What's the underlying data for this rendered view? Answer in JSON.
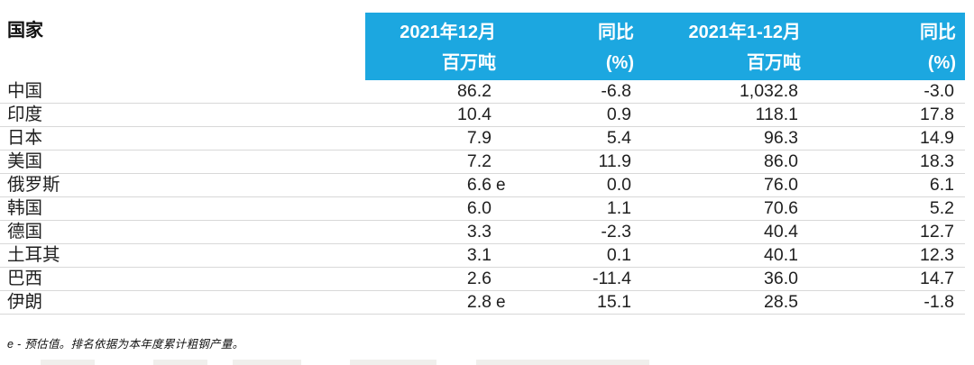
{
  "table": {
    "country_header": "国家",
    "columns": [
      {
        "line1": "2021年12月",
        "line2": "百万吨"
      },
      {
        "line1": "同比",
        "line2": "(%)"
      },
      {
        "line1": "2021年1-12月",
        "line2": "百万吨"
      },
      {
        "line1": "同比",
        "line2": "(%)"
      }
    ],
    "rows": [
      {
        "country": "中国",
        "dec": "86.2",
        "dec_e": "",
        "dec_yoy": "-6.8",
        "ytd": "1,032.8",
        "ytd_yoy": "-3.0"
      },
      {
        "country": "印度",
        "dec": "10.4",
        "dec_e": "",
        "dec_yoy": "0.9",
        "ytd": "118.1",
        "ytd_yoy": "17.8"
      },
      {
        "country": "日本",
        "dec": "7.9",
        "dec_e": "",
        "dec_yoy": "5.4",
        "ytd": "96.3",
        "ytd_yoy": "14.9"
      },
      {
        "country": "美国",
        "dec": "7.2",
        "dec_e": "",
        "dec_yoy": "11.9",
        "ytd": "86.0",
        "ytd_yoy": "18.3"
      },
      {
        "country": "俄罗斯",
        "dec": "6.6",
        "dec_e": "e",
        "dec_yoy": "0.0",
        "ytd": "76.0",
        "ytd_yoy": "6.1"
      },
      {
        "country": "韩国",
        "dec": "6.0",
        "dec_e": "",
        "dec_yoy": "1.1",
        "ytd": "70.6",
        "ytd_yoy": "5.2"
      },
      {
        "country": "德国",
        "dec": "3.3",
        "dec_e": "",
        "dec_yoy": "-2.3",
        "ytd": "40.4",
        "ytd_yoy": "12.7"
      },
      {
        "country": "土耳其",
        "dec": "3.1",
        "dec_e": "",
        "dec_yoy": "0.1",
        "ytd": "40.1",
        "ytd_yoy": "12.3"
      },
      {
        "country": "巴西",
        "dec": "2.6",
        "dec_e": "",
        "dec_yoy": "-11.4",
        "ytd": "36.0",
        "ytd_yoy": "14.7"
      },
      {
        "country": "伊朗",
        "dec": "2.8",
        "dec_e": "e",
        "dec_yoy": "15.1",
        "ytd": "28.5",
        "ytd_yoy": "-1.8"
      }
    ]
  },
  "footnote": "e - 预估值。排名依据为本年度累计粗钢产量。",
  "colors": {
    "header_bg": "#1CA7E0",
    "header_text": "#ffffff",
    "body_text": "#1f1f1f",
    "row_border": "#d8d8d8"
  }
}
